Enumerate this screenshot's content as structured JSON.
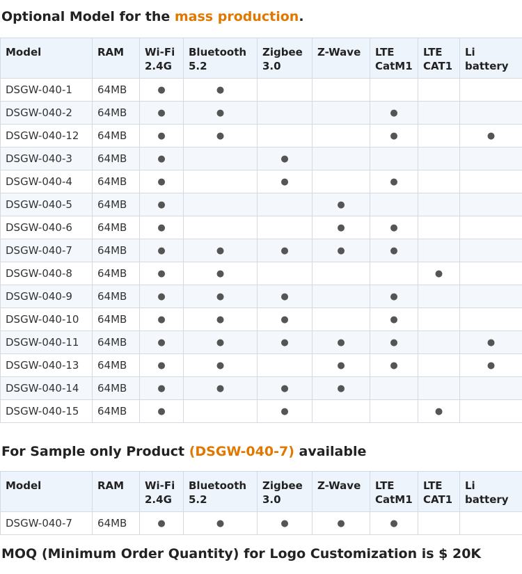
{
  "heading1": {
    "parts": [
      "Optional Model for the ",
      "mass production",
      "."
    ]
  },
  "table1": {
    "headers": [
      "Model",
      "RAM",
      "Wi-Fi\n2.4G",
      "Bluetooth\n5.2",
      "Zigbee\n3.0",
      "Z-Wave",
      "LTE\nCatM1",
      "LTE\nCAT1",
      "Li battery"
    ],
    "rows": [
      [
        "DSGW-040-1",
        "64MB",
        "●",
        "●",
        null,
        null,
        null,
        null,
        null
      ],
      [
        "DSGW-040-2",
        "64MB",
        "●",
        "●",
        null,
        null,
        "●",
        null,
        null
      ],
      [
        "DSGW-040-12",
        "64MB",
        "●",
        "●",
        null,
        null,
        "●",
        null,
        "●"
      ],
      [
        "DSGW-040-3",
        "64MB",
        "●",
        null,
        "●",
        null,
        null,
        null,
        null
      ],
      [
        "DSGW-040-4",
        "64MB",
        "●",
        null,
        "●",
        null,
        "●",
        null,
        null
      ],
      [
        "DSGW-040-5",
        "64MB",
        "●",
        null,
        null,
        "●",
        null,
        null,
        null
      ],
      [
        "DSGW-040-6",
        "64MB",
        "●",
        null,
        null,
        "●",
        "●",
        null,
        null
      ],
      [
        "DSGW-040-7",
        "64MB",
        "●",
        "●",
        "●",
        "●",
        "●",
        null,
        null
      ],
      [
        "DSGW-040-8",
        "64MB",
        "●",
        "●",
        null,
        null,
        null,
        "●",
        null
      ],
      [
        "DSGW-040-9",
        "64MB",
        "●",
        "●",
        "●",
        null,
        "●",
        null,
        null
      ],
      [
        "DSGW-040-10",
        "64MB",
        "●",
        "●",
        "●",
        null,
        "●",
        null,
        null
      ],
      [
        "DSGW-040-11",
        "64MB",
        "●",
        "●",
        "●",
        "●",
        "●",
        null,
        "●"
      ],
      [
        "DSGW-040-13",
        "64MB",
        "●",
        "●",
        null,
        "●",
        "●",
        null,
        "●"
      ],
      [
        "DSGW-040-14",
        "64MB",
        "●",
        "●",
        "●",
        "●",
        null,
        null,
        null
      ],
      [
        "DSGW-040-15",
        "64MB",
        "●",
        null,
        "●",
        null,
        null,
        "●",
        null
      ]
    ]
  },
  "heading2": {
    "parts": [
      "For Sample only Product ",
      "(DSGW-040-7)",
      " available"
    ]
  },
  "table2": {
    "headers": [
      "Model",
      "RAM",
      "Wi-Fi\n2.4G",
      "Bluetooth\n5.2",
      "Zigbee\n3.0",
      "Z-Wave",
      "LTE\nCatM1",
      "LTE\nCAT1",
      "Li battery"
    ],
    "rows": [
      [
        "DSGW-040-7",
        "64MB",
        "●",
        "●",
        "●",
        "●",
        "●",
        null,
        null
      ]
    ]
  },
  "footer": {
    "text": "MOQ (Minimum Order Quantity) for Logo Customization is $ 20K"
  }
}
